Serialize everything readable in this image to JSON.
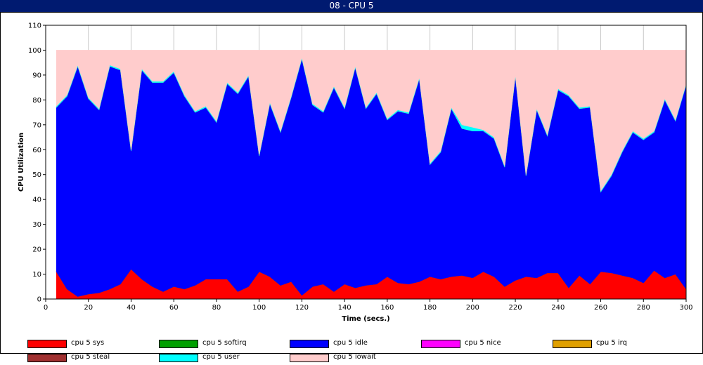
{
  "window": {
    "title": "08 - CPU 5"
  },
  "chart_data": {
    "type": "area",
    "stacked": true,
    "title": "",
    "xlabel": "Time (secs.)",
    "ylabel": "CPU Utilization",
    "xlim": [
      0,
      300
    ],
    "ylim": [
      0,
      110
    ],
    "xticks": [
      0,
      20,
      40,
      60,
      80,
      100,
      120,
      140,
      160,
      180,
      200,
      220,
      240,
      260,
      280,
      300
    ],
    "yticks": [
      0,
      10,
      20,
      30,
      40,
      50,
      60,
      70,
      80,
      90,
      100,
      110
    ],
    "grid": "vertical",
    "legend_position": "bottom",
    "x": [
      5,
      10,
      15,
      20,
      25,
      30,
      35,
      40,
      45,
      50,
      55,
      60,
      65,
      70,
      75,
      80,
      85,
      90,
      95,
      100,
      105,
      110,
      115,
      120,
      125,
      130,
      135,
      140,
      145,
      150,
      155,
      160,
      165,
      170,
      175,
      180,
      185,
      190,
      195,
      200,
      205,
      210,
      215,
      220,
      225,
      230,
      235,
      240,
      245,
      250,
      255,
      260,
      265,
      270,
      275,
      280,
      285,
      290,
      295,
      300
    ],
    "series": [
      {
        "name": "cpu 5 sys",
        "color": "#ff0000",
        "values": [
          11,
          4,
          1,
          2,
          2.5,
          4,
          6,
          12,
          8,
          5,
          3,
          5,
          4,
          5.5,
          8,
          8,
          8,
          3,
          5,
          11,
          9,
          5.5,
          7,
          1.5,
          5,
          6,
          3,
          6,
          4.5,
          5.5,
          6,
          9,
          6.5,
          6,
          7,
          9,
          8,
          9,
          9.5,
          8.5,
          11,
          9,
          5,
          7.5,
          9,
          8.5,
          10.5,
          10.5,
          4.5,
          9.5,
          6,
          11,
          10.5,
          9.5,
          8.5,
          6.5,
          11.5,
          8.5,
          10,
          4
        ]
      },
      {
        "name": "cpu 5 softirq",
        "color": "#00a000",
        "values": [
          0,
          0,
          0,
          0,
          0,
          0,
          0,
          0,
          0,
          0,
          0,
          0,
          0,
          0,
          0,
          0,
          0,
          0,
          0,
          0,
          0,
          0,
          0,
          0,
          0,
          0,
          0,
          0,
          0,
          0,
          0,
          0,
          0,
          0,
          0,
          0,
          0,
          0,
          0,
          0,
          0,
          0,
          0,
          0,
          0,
          0,
          0,
          0,
          0,
          0,
          0,
          0,
          0,
          0,
          0,
          0,
          0,
          0,
          0,
          0
        ]
      },
      {
        "name": "cpu 5 idle",
        "color": "#0000ff",
        "values": [
          66,
          77.5,
          92.5,
          78.5,
          73.5,
          89.5,
          86,
          47.5,
          84,
          82,
          84,
          86,
          77.5,
          69.5,
          69,
          63,
          78.5,
          79.5,
          84.5,
          46.5,
          69.5,
          61.5,
          74,
          95,
          73,
          69,
          82,
          70.5,
          88.5,
          71,
          76.5,
          63,
          69,
          68.5,
          81.5,
          45,
          51,
          67.5,
          59,
          59,
          56.5,
          55.5,
          48,
          82,
          40.5,
          67.5,
          55,
          73.5,
          77,
          67,
          71,
          32,
          39,
          49.5,
          58.5,
          57.5,
          55.5,
          71.5,
          61.5,
          82
        ]
      },
      {
        "name": "cpu 5 nice",
        "color": "#ff00ff",
        "values": [
          0,
          0,
          0,
          0,
          0,
          0,
          0,
          0,
          0,
          0,
          0,
          0,
          0,
          0,
          0,
          0,
          0,
          0,
          0,
          0,
          0,
          0,
          0,
          0,
          0,
          0,
          0,
          0,
          0,
          0,
          0,
          0,
          0,
          0,
          0,
          0,
          0,
          0,
          0,
          0,
          0,
          0,
          0,
          0,
          0,
          0,
          0,
          0,
          0,
          0,
          0,
          0,
          0,
          0,
          0,
          0,
          0,
          0,
          0,
          0
        ]
      },
      {
        "name": "cpu 5 irq",
        "color": "#e0a000",
        "values": [
          0,
          0,
          0,
          0,
          0,
          0,
          0,
          0,
          0,
          0,
          0,
          0,
          0,
          0,
          0,
          0,
          0,
          0,
          0,
          0,
          0,
          0,
          0,
          0,
          0,
          0,
          0,
          0,
          0,
          0,
          0,
          0,
          0,
          0,
          0,
          0,
          0,
          0,
          0,
          0,
          0,
          0,
          0,
          0,
          0,
          0,
          0,
          0,
          0,
          0,
          0,
          0,
          0,
          0,
          0,
          0,
          0,
          0,
          0,
          0
        ]
      },
      {
        "name": "cpu 5 steal",
        "color": "#a03030",
        "values": [
          0,
          0,
          0,
          0,
          0,
          0,
          0,
          0,
          0,
          0,
          0,
          0,
          0,
          0,
          0,
          0,
          0,
          0,
          0,
          0,
          0,
          0,
          0,
          0,
          0,
          0,
          0,
          0,
          0,
          0,
          0,
          0,
          0,
          0,
          0,
          0,
          0,
          0,
          0,
          0,
          0,
          0,
          0,
          0,
          0,
          0,
          0,
          0,
          0,
          0,
          0,
          0,
          0,
          0,
          0,
          0,
          0,
          0,
          0,
          0
        ]
      },
      {
        "name": "cpu 5 user",
        "color": "#00ffff",
        "values": [
          0.5,
          0.5,
          0.5,
          0.5,
          0.5,
          0.5,
          0.5,
          0.5,
          0.5,
          0.5,
          0.5,
          0.5,
          0.5,
          0.5,
          0.5,
          0.5,
          0.5,
          0.5,
          0.5,
          0.5,
          0.5,
          0.5,
          0.5,
          0.5,
          0.5,
          0.5,
          0.5,
          0.5,
          0.5,
          0.5,
          0.5,
          0.5,
          0.5,
          0.5,
          0.5,
          0.5,
          0.5,
          0.5,
          1.5,
          1.5,
          0.5,
          0.5,
          0.5,
          0.5,
          0.5,
          0.5,
          0.5,
          0.5,
          0.5,
          0.5,
          0.5,
          0.5,
          0.5,
          0.5,
          0.5,
          0.5,
          0.5,
          0.5,
          0.5,
          0.5
        ]
      },
      {
        "name": "cpu 5 iowait",
        "color": "#ffcccc",
        "values": [
          22.5,
          18,
          6,
          19,
          23.5,
          6,
          7.5,
          40,
          7.5,
          12.5,
          12.5,
          8.5,
          18,
          24.5,
          22.5,
          28.5,
          13,
          17,
          10,
          42,
          21,
          32.5,
          18.5,
          3,
          21.5,
          24.5,
          14.5,
          23,
          6.5,
          23,
          17,
          27.5,
          24,
          25,
          11,
          45.5,
          40.5,
          23,
          30,
          31,
          32,
          35,
          46.5,
          10,
          50,
          23.5,
          34,
          15.5,
          18,
          23,
          22.5,
          56.5,
          50,
          40.5,
          32.5,
          35.5,
          32.5,
          19.5,
          28,
          13.5
        ]
      }
    ]
  }
}
